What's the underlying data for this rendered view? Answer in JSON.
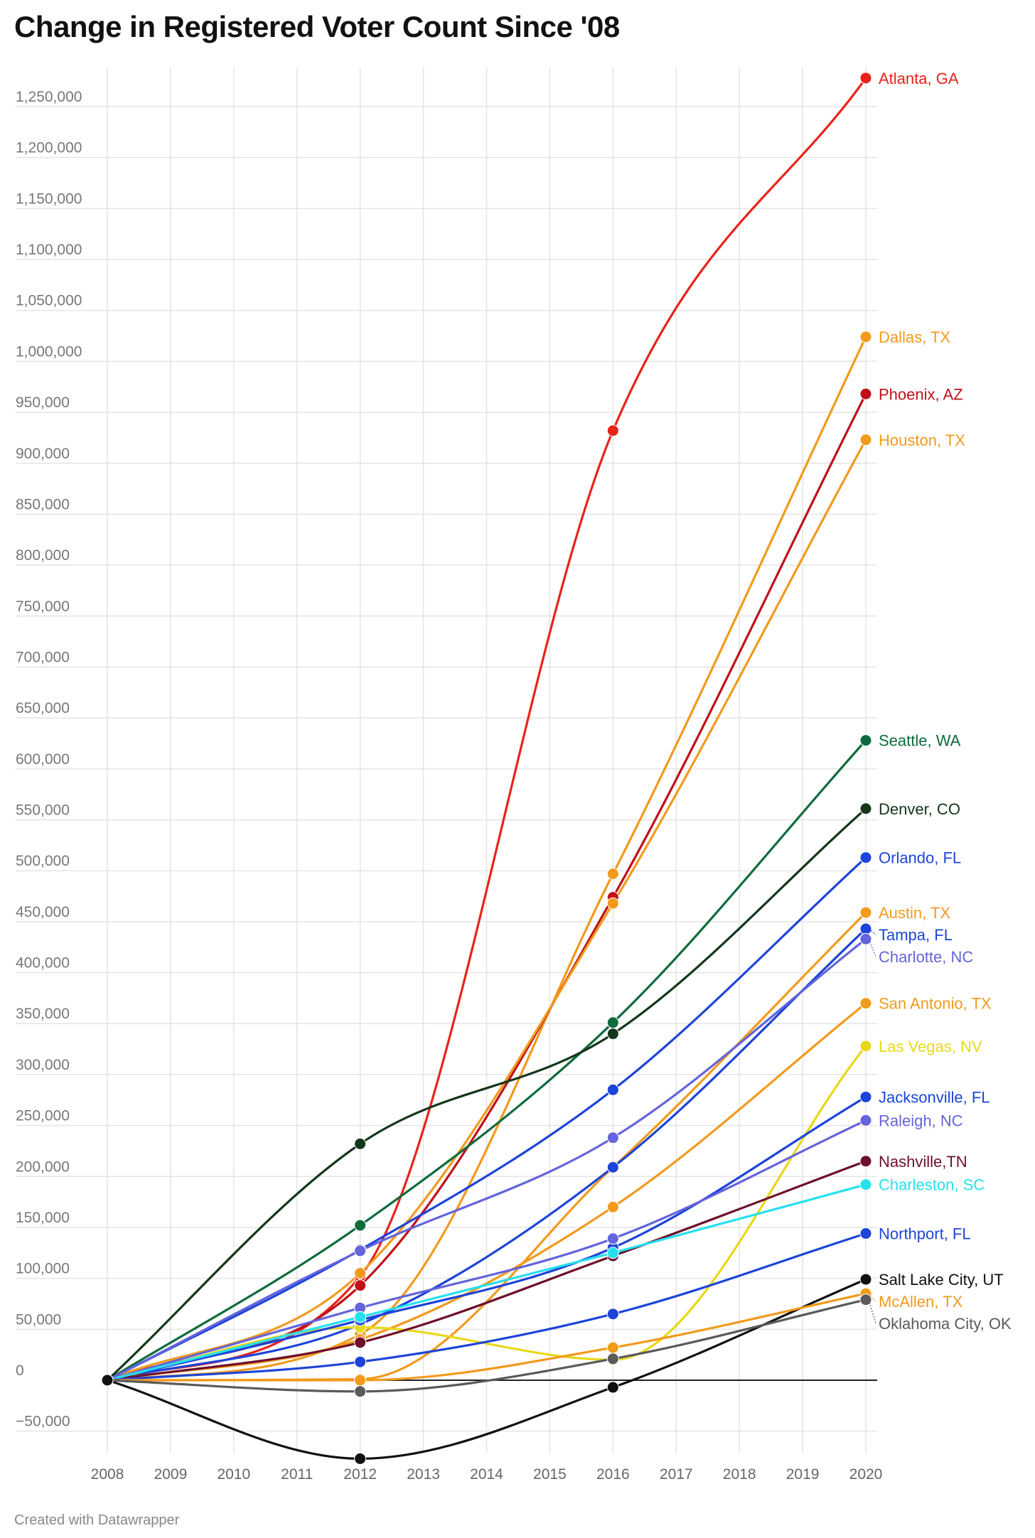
{
  "chart_data": {
    "type": "line",
    "title": "Change in Registered Voter Count Since '08",
    "x": [
      2008,
      2012,
      2016,
      2020
    ],
    "x_ticks": [
      "2008",
      "2009",
      "2010",
      "2011",
      "2012",
      "2013",
      "2014",
      "2015",
      "2016",
      "2017",
      "2018",
      "2019",
      "2020"
    ],
    "ylim": [
      -75000,
      1275000
    ],
    "y_ticks": [
      {
        "value": -50000,
        "label": "−50,000"
      },
      {
        "value": 0,
        "label": "0"
      },
      {
        "value": 50000,
        "label": "50,000"
      },
      {
        "value": 100000,
        "label": "100,000"
      },
      {
        "value": 150000,
        "label": "150,000"
      },
      {
        "value": 200000,
        "label": "200,000"
      },
      {
        "value": 250000,
        "label": "250,000"
      },
      {
        "value": 300000,
        "label": "300,000"
      },
      {
        "value": 350000,
        "label": "350,000"
      },
      {
        "value": 400000,
        "label": "400,000"
      },
      {
        "value": 450000,
        "label": "450,000"
      },
      {
        "value": 500000,
        "label": "500,000"
      },
      {
        "value": 550000,
        "label": "550,000"
      },
      {
        "value": 600000,
        "label": "600,000"
      },
      {
        "value": 650000,
        "label": "650,000"
      },
      {
        "value": 700000,
        "label": "700,000"
      },
      {
        "value": 750000,
        "label": "750,000"
      },
      {
        "value": 800000,
        "label": "800,000"
      },
      {
        "value": 850000,
        "label": "850,000"
      },
      {
        "value": 900000,
        "label": "900,000"
      },
      {
        "value": 950000,
        "label": "950,000"
      },
      {
        "value": 1000000,
        "label": "1,000,000"
      },
      {
        "value": 1050000,
        "label": "1,050,000"
      },
      {
        "value": 1100000,
        "label": "1,100,000"
      },
      {
        "value": 1150000,
        "label": "1,150,000"
      },
      {
        "value": 1200000,
        "label": "1,200,000"
      },
      {
        "value": 1250000,
        "label": "1,250,000"
      }
    ],
    "grid": true,
    "legend": "direct labels at line ends",
    "series": [
      {
        "name": "Atlanta, GA",
        "color": "#e8231a",
        "values": [
          0,
          102000,
          932000,
          1278000
        ]
      },
      {
        "name": "Dallas, TX",
        "color": "#f29a1c",
        "values": [
          0,
          45000,
          497000,
          1024000
        ]
      },
      {
        "name": "Phoenix, AZ",
        "color": "#c0101a",
        "values": [
          0,
          93000,
          474000,
          968000
        ]
      },
      {
        "name": "Houston, TX",
        "color": "#f29a1c",
        "values": [
          0,
          105000,
          468000,
          923000
        ]
      },
      {
        "name": "Seattle, WA",
        "color": "#0e6b3c",
        "values": [
          0,
          152000,
          351000,
          628000
        ]
      },
      {
        "name": "Denver, CO",
        "color": "#14361a",
        "values": [
          0,
          232000,
          340000,
          561000
        ]
      },
      {
        "name": "Orlando, FL",
        "color": "#1d44d8",
        "values": [
          0,
          128000,
          285000,
          513000
        ]
      },
      {
        "name": "Austin, TX",
        "color": "#f29a1c",
        "values": [
          0,
          1000,
          209000,
          459000
        ]
      },
      {
        "name": "Tampa, FL",
        "color": "#1d44d8",
        "values": [
          0,
          55000,
          209000,
          443000
        ]
      },
      {
        "name": "Charlotte, NC",
        "color": "#6464dc",
        "values": [
          0,
          127000,
          238000,
          433000
        ]
      },
      {
        "name": "San Antonio, TX",
        "color": "#f29a1c",
        "values": [
          0,
          40000,
          170000,
          370000
        ]
      },
      {
        "name": "Las Vegas, NV",
        "color": "#e8d81a",
        "values": [
          0,
          52000,
          20000,
          328000
        ]
      },
      {
        "name": "Jacksonville, FL",
        "color": "#1d44d8",
        "values": [
          0,
          59000,
          130000,
          278000
        ]
      },
      {
        "name": "Raleigh, NC",
        "color": "#6464dc",
        "values": [
          0,
          71000,
          139000,
          255000
        ]
      },
      {
        "name": "Nashville,TN",
        "color": "#6d0f2a",
        "values": [
          0,
          37000,
          122000,
          215000
        ]
      },
      {
        "name": "Charleston, SC",
        "color": "#26e0ee",
        "values": [
          0,
          62000,
          125000,
          192000
        ]
      },
      {
        "name": "Northport, FL",
        "color": "#1d44d8",
        "values": [
          0,
          18000,
          65000,
          144000
        ]
      },
      {
        "name": "Salt Lake City, UT",
        "color": "#111111",
        "values": [
          0,
          -77000,
          -7000,
          99000
        ]
      },
      {
        "name": "McAllen, TX",
        "color": "#f29a1c",
        "values": [
          0,
          0,
          32000,
          85000
        ]
      },
      {
        "name": "Oklahoma City, OK",
        "color": "#5a5a5a",
        "values": [
          0,
          -11000,
          21000,
          79000
        ]
      }
    ]
  },
  "footer": "Created with Datawrapper"
}
